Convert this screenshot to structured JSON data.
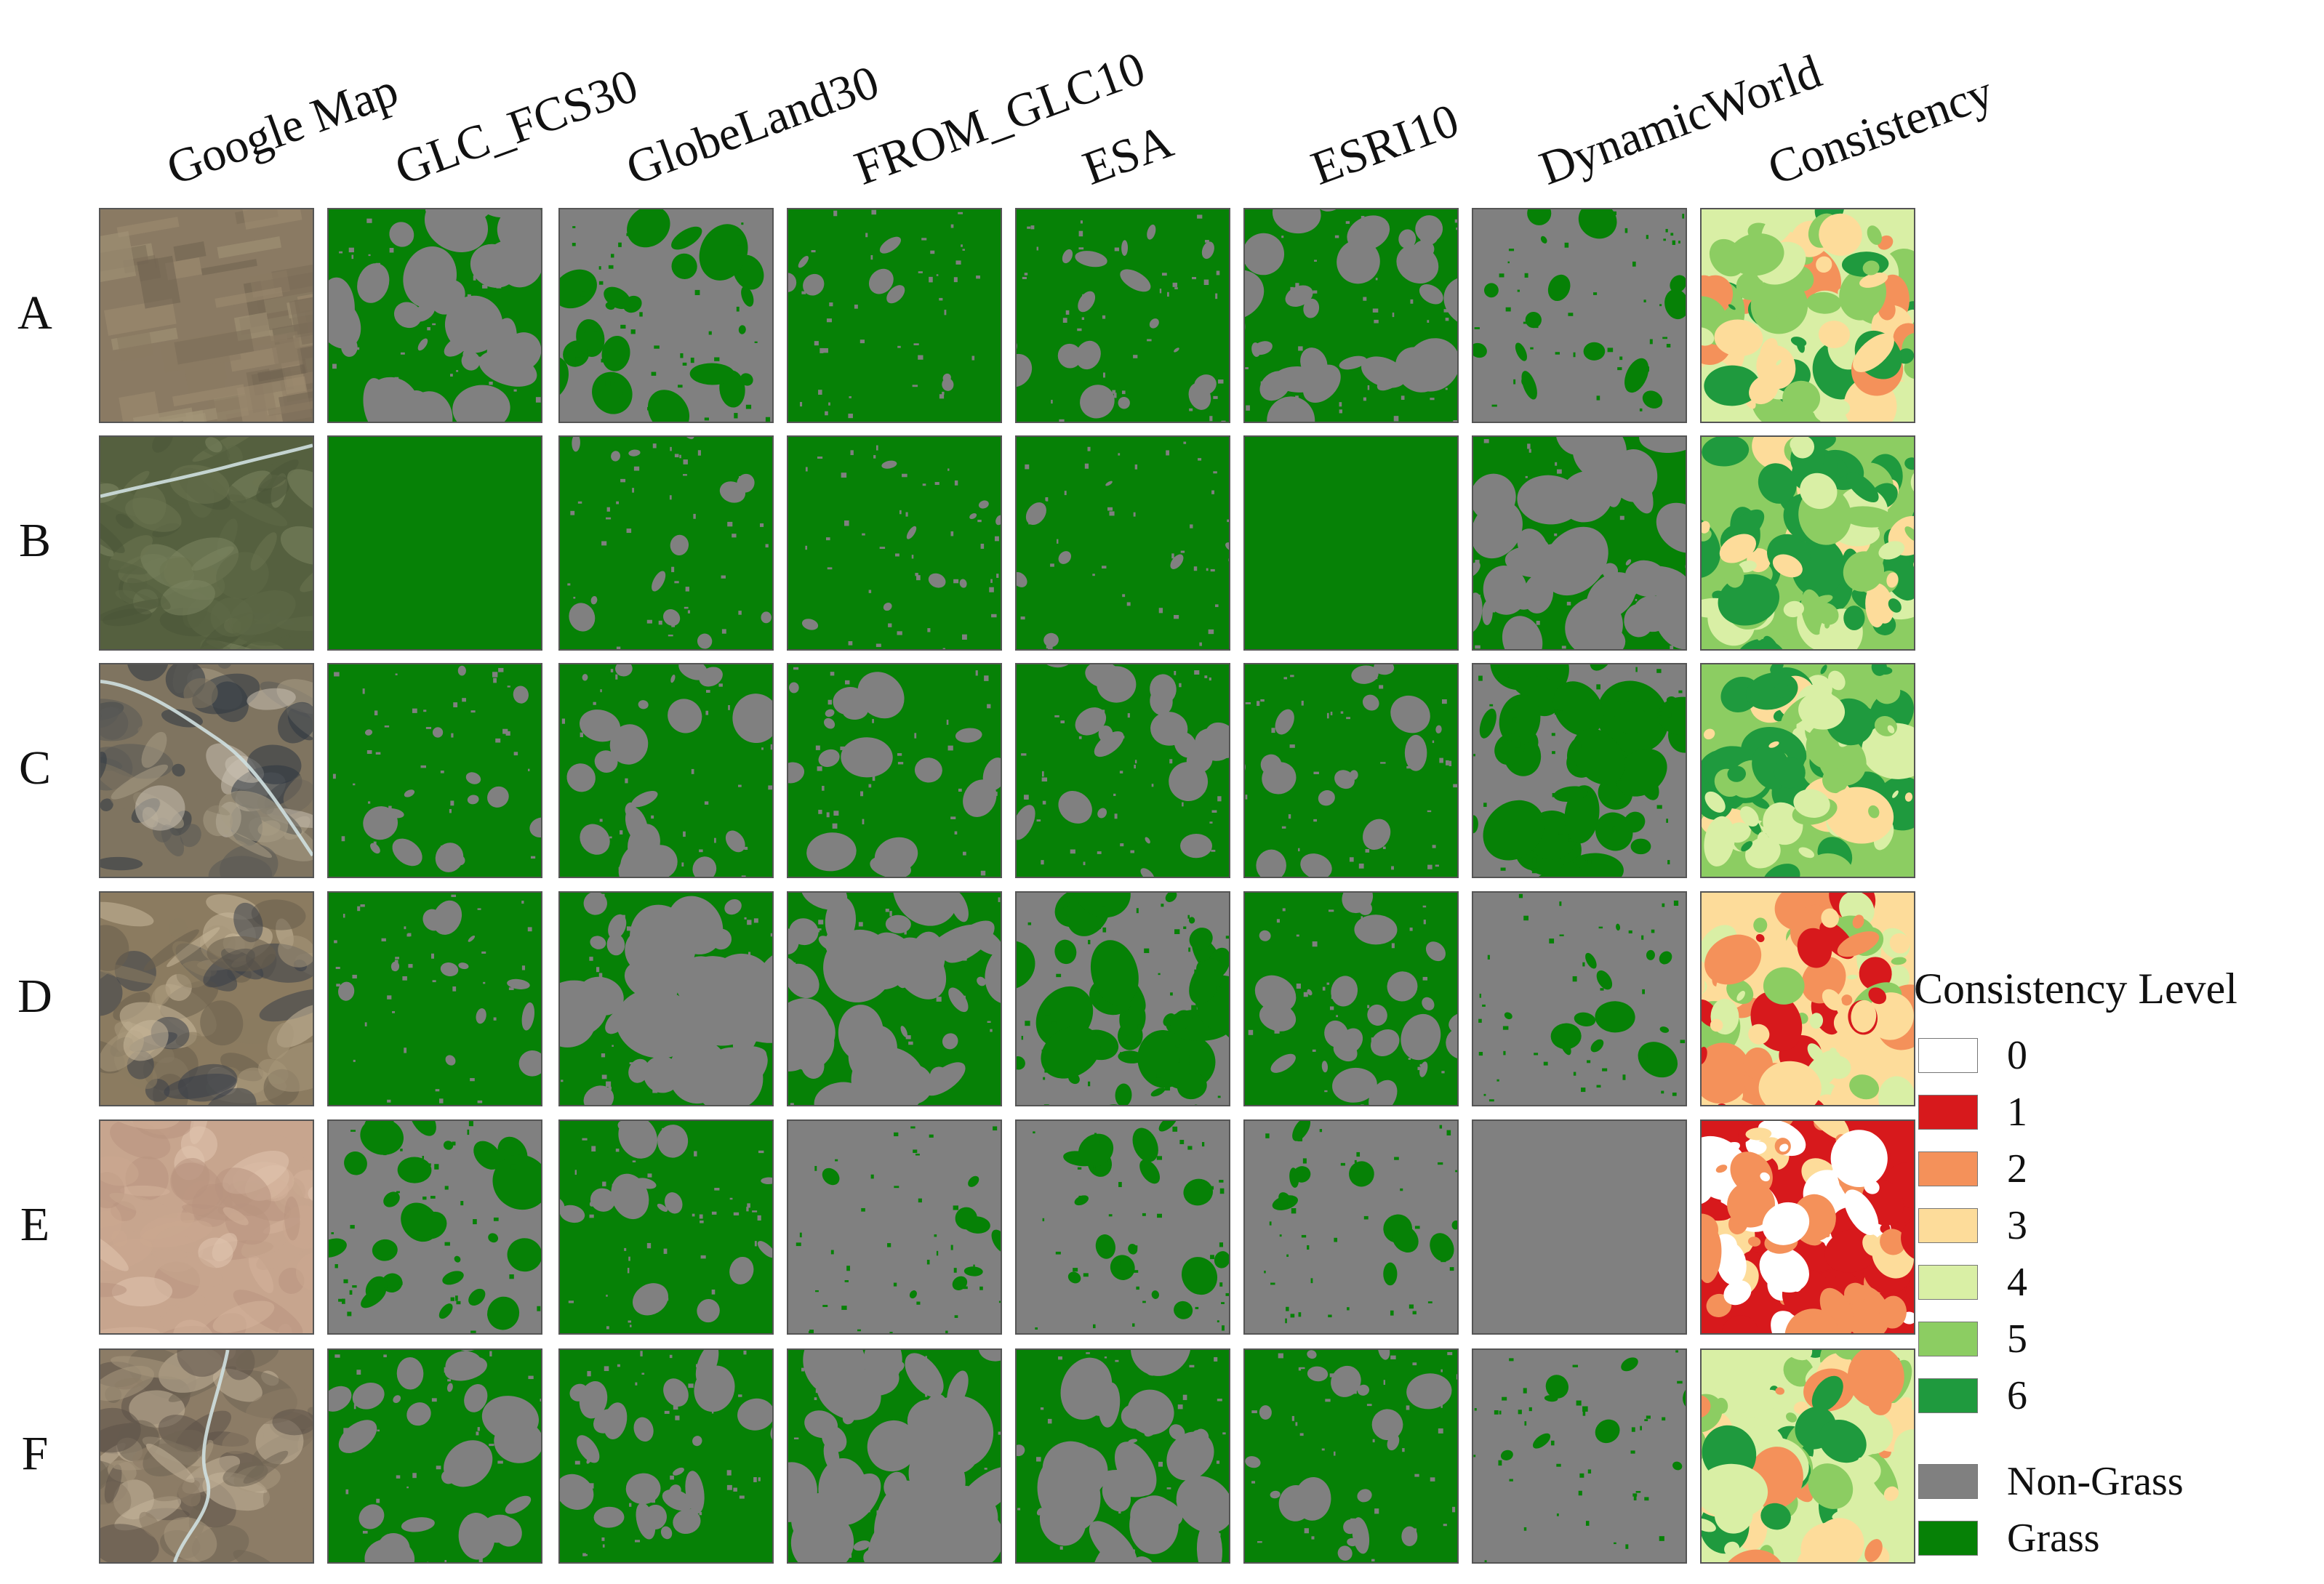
{
  "columns": [
    "Google Map",
    "GLC_FCS30",
    "GlobeLand30",
    "FROM_GLC10",
    "ESA",
    "ESRI10",
    "DynamicWorld",
    "Consistency"
  ],
  "rows": [
    "A",
    "B",
    "C",
    "D",
    "E",
    "F"
  ],
  "legend": {
    "title": "Consistency Level",
    "levels": [
      {
        "label": "0",
        "color": "#ffffff"
      },
      {
        "label": "1",
        "color": "#d7191c"
      },
      {
        "label": "2",
        "color": "#f4915a"
      },
      {
        "label": "3",
        "color": "#fddc9a"
      },
      {
        "label": "4",
        "color": "#d9efa5"
      },
      {
        "label": "5",
        "color": "#8ccd62"
      },
      {
        "label": "6",
        "color": "#1f9a3e"
      }
    ],
    "classes": [
      {
        "label": "Non-Grass",
        "color": "#808080"
      },
      {
        "label": "Grass",
        "color": "#068106"
      }
    ]
  },
  "colors": {
    "grass": "#068106",
    "non_grass": "#808080",
    "tile_border": "#555555"
  },
  "grass_fraction": {
    "A": [
      0.62,
      0.22,
      0.98,
      0.88,
      0.74,
      0.12
    ],
    "B": [
      1.0,
      0.9,
      0.97,
      0.98,
      1.0,
      0.6
    ],
    "C": [
      0.9,
      0.78,
      0.82,
      0.85,
      0.88,
      0.42
    ],
    "D": [
      0.92,
      0.58,
      0.55,
      0.4,
      0.78,
      0.1
    ],
    "E": [
      0.28,
      0.85,
      0.03,
      0.12,
      0.08,
      0.0
    ],
    "F": [
      0.78,
      0.8,
      0.55,
      0.62,
      0.85,
      0.03
    ]
  }
}
